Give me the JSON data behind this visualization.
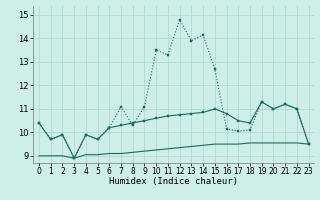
{
  "xlabel": "Humidex (Indice chaleur)",
  "xlim": [
    -0.5,
    23.5
  ],
  "ylim": [
    8.7,
    15.4
  ],
  "xticks": [
    0,
    1,
    2,
    3,
    4,
    5,
    6,
    7,
    8,
    9,
    10,
    11,
    12,
    13,
    14,
    15,
    16,
    17,
    18,
    19,
    20,
    21,
    22,
    23
  ],
  "yticks": [
    9,
    10,
    11,
    12,
    13,
    14,
    15
  ],
  "bg_color": "#ceeee8",
  "grid_color": "#aad6cf",
  "line_color": "#1a6b5e",
  "line1_x": [
    0,
    1,
    2,
    3,
    4,
    5,
    6,
    7,
    8,
    9,
    10,
    11,
    12,
    13,
    14,
    15,
    16,
    17,
    18,
    19,
    20,
    21,
    22,
    23
  ],
  "line1_y": [
    10.4,
    9.7,
    9.9,
    8.9,
    9.9,
    9.7,
    10.2,
    11.1,
    10.3,
    11.1,
    13.5,
    13.3,
    14.8,
    13.9,
    14.15,
    12.7,
    10.15,
    10.05,
    10.1,
    11.3,
    11.0,
    11.2,
    11.0,
    9.5
  ],
  "line2_x": [
    0,
    1,
    2,
    3,
    4,
    5,
    6,
    7,
    8,
    9,
    10,
    11,
    12,
    13,
    14,
    15,
    16,
    17,
    18,
    19,
    20,
    21,
    22,
    23
  ],
  "line2_y": [
    10.4,
    9.7,
    9.9,
    8.9,
    9.9,
    9.7,
    10.2,
    10.3,
    10.4,
    10.5,
    10.6,
    10.7,
    10.75,
    10.8,
    10.85,
    11.0,
    10.8,
    10.5,
    10.4,
    11.3,
    11.0,
    11.2,
    11.0,
    9.5
  ],
  "line3_x": [
    0,
    1,
    2,
    3,
    4,
    5,
    6,
    7,
    8,
    9,
    10,
    11,
    12,
    13,
    14,
    15,
    16,
    17,
    18,
    19,
    20,
    21,
    22,
    23
  ],
  "line3_y": [
    9.0,
    9.0,
    9.0,
    8.9,
    9.05,
    9.05,
    9.1,
    9.1,
    9.15,
    9.2,
    9.25,
    9.3,
    9.35,
    9.4,
    9.45,
    9.5,
    9.5,
    9.5,
    9.55,
    9.55,
    9.55,
    9.55,
    9.55,
    9.5
  ]
}
